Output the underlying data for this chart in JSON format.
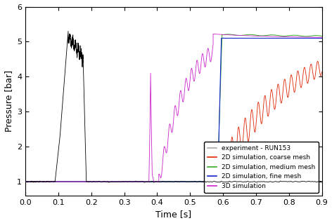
{
  "title": "",
  "xlabel": "Time [s]",
  "ylabel": "Pressure [bar]",
  "xlim": [
    0.0,
    0.9
  ],
  "ylim": [
    0.6,
    6.0
  ],
  "xticks": [
    0.0,
    0.1,
    0.2,
    0.3,
    0.4,
    0.5,
    0.6,
    0.7,
    0.8,
    0.9
  ],
  "yticks": [
    1,
    2,
    3,
    4,
    5,
    6
  ],
  "colors": {
    "experiment": "#aaaaaa",
    "coarse": "#dd2200",
    "medium": "#33aa22",
    "fine": "#1122cc",
    "3d": "#cc22cc"
  },
  "legend_labels": [
    "experiment - RUN153",
    "2D simulation, coarse mesh",
    "2D simulation, medium mesh",
    "2D simulation, fine mesh",
    "3D simulation"
  ],
  "figsize": [
    4.72,
    3.18
  ],
  "dpi": 100,
  "background_color": "#ffffff"
}
